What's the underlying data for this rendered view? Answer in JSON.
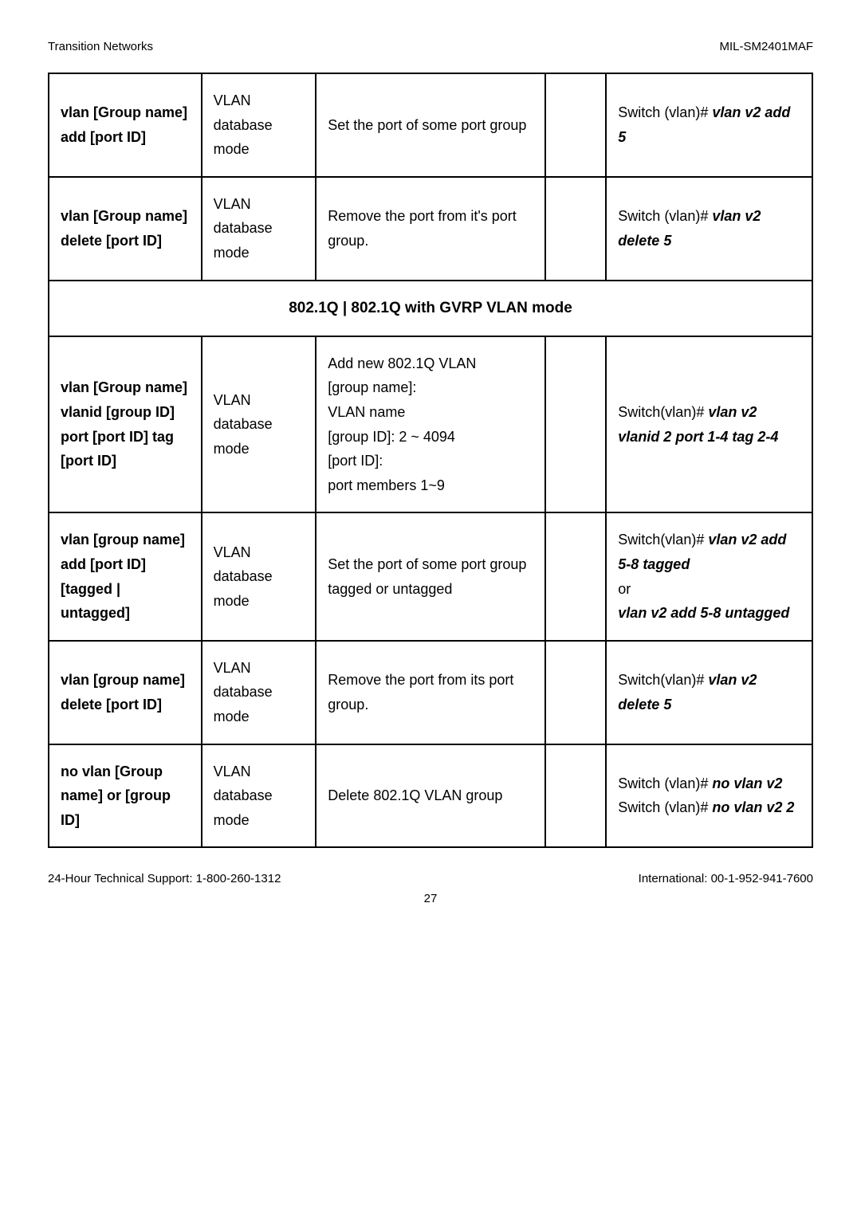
{
  "header": {
    "left": "Transition Networks",
    "right": "MIL-SM2401MAF"
  },
  "rows": [
    {
      "c1": "vlan [Group name] add [port ID]",
      "c2": "VLAN database mode",
      "c3": "Set the port of some port group",
      "c4": "",
      "c5_plain": "Switch (vlan)# ",
      "c5_bold": "vlan v2 add 5"
    },
    {
      "c1": "vlan [Group name] delete [port ID]",
      "c2": "VLAN database mode",
      "c3": "Remove the port from it's port group.",
      "c4": "",
      "c5_plain": "Switch (vlan)# ",
      "c5_bold": "vlan v2 delete 5"
    }
  ],
  "section": "802.1Q | 802.1Q with GVRP VLAN mode",
  "rows2": [
    {
      "c1": "vlan [Group name] vlanid [group ID] port [port ID] tag [port ID]",
      "c2": "VLAN database mode",
      "c3_lines": [
        "Add new 802.1Q VLAN",
        "[group name]:",
        "VLAN name",
        "[group ID]: 2 ~ 4094",
        "[port ID]:",
        "port members 1~9"
      ],
      "c4": "",
      "c5_plain": "Switch(vlan)# ",
      "c5_bold": "vlan v2 vlanid 2 port 1-4 tag 2-4"
    },
    {
      "c1": "vlan [group name] add [port ID] [tagged | untagged]",
      "c2": "VLAN database mode",
      "c3": "Set the port of some port group tagged or untagged",
      "c4": "",
      "c5_html": "Switch(vlan)# <span class='bolditalic'>vlan v2 add 5-8 tagged</span><br>or<br><span class='bolditalic'>vlan v2 add 5-8 untagged</span>"
    },
    {
      "c1": "vlan [group name] delete [port ID]",
      "c2": "VLAN database mode",
      "c3": "Remove the port from its port group.",
      "c4": "",
      "c5_plain": "Switch(vlan)# ",
      "c5_bold": "vlan v2 delete 5"
    },
    {
      "c1": "no vlan [Group name] or [group ID]",
      "c2": "VLAN database mode",
      "c3": "Delete 802.1Q VLAN group",
      "c4": "",
      "c5_html": "Switch (vlan)# <span class='bolditalic'>no vlan v2</span><br>Switch (vlan)# <span class='bolditalic'>no vlan v2 2</span>"
    }
  ],
  "footer": {
    "left": "24-Hour Technical Support: 1-800-260-1312",
    "right": "International: 00-1-952-941-7600",
    "page": "27"
  }
}
